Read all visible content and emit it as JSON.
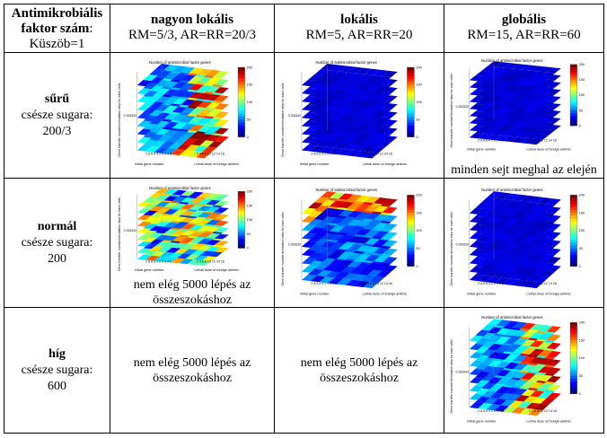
{
  "header": {
    "corner": {
      "line1": "Antimikrobiális",
      "line2": "faktor szám",
      "line2_suffix": ":",
      "line3": "Küszöb=1"
    },
    "cols": [
      {
        "title": "nagyon lokális",
        "sub": "RM=5/3, AR=RR=20/3"
      },
      {
        "title": "lokális",
        "sub": "RM=5, AR=RR=20"
      },
      {
        "title": "globális",
        "sub": "RM=15, AR=RR=60"
      }
    ]
  },
  "rows": [
    {
      "title": "sűrű",
      "line2": "csésze sugara:",
      "line3": "200/3"
    },
    {
      "title": "normál",
      "line2": "csésze sugara:",
      "line3": "200"
    },
    {
      "title": "híg",
      "line2": "csésze sugara:",
      "line3": "600"
    }
  ],
  "notes": {
    "dense_global": "minden sejt meghal az elején",
    "normal_verylocal_1": "nem elég 5000 lépés az",
    "normal_verylocal_2": "összeszokáshoz",
    "dilute_verylocal_1": "nem elég 5000 lépés az",
    "dilute_verylocal_2": "összeszokáshoz",
    "dilute_local_1": "nem elég 5000 lépés az",
    "dilute_local_2": "összeszokáshoz"
  },
  "plot_text": {
    "title": "Number of antimicrobial factor genes",
    "zlabel": "Gene transfer number/simulation step for each cells",
    "xlabel": "Initial gene number",
    "ylabel": "Lethal dose of foreign antimic",
    "xticks": "2 8 8 6 4 2 0 6 4 2",
    "yticks": "2 4 6 8 10 12 14 16",
    "ztick": "0.333333",
    "cbar": [
      "200",
      "150",
      "100",
      "50",
      "0"
    ]
  },
  "colors": {
    "jet": [
      "#00008f",
      "#0000ff",
      "#00ffff",
      "#ffff00",
      "#ff0000",
      "#800000"
    ]
  }
}
